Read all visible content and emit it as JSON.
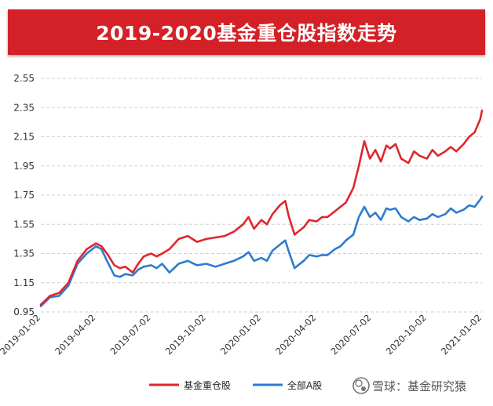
{
  "colors": {
    "banner": "#d42027",
    "fund": "#e0262d",
    "all_a": "#2e7bcf",
    "grid": "#cfcfcf"
  },
  "watermark": {
    "text": "雪球：基金研究猿",
    "icon": "snowball-logo-icon"
  },
  "chart_data": {
    "type": "line",
    "title": "2019-2020基金重仓股指数走势",
    "xlabel": "",
    "ylabel": "",
    "ylim": [
      0.95,
      2.55
    ],
    "yticks": [
      "2.55",
      "2.35",
      "2.15",
      "1.95",
      "1.75",
      "1.55",
      "1.35",
      "1.15",
      "0.95"
    ],
    "ytick_values": [
      2.55,
      2.35,
      2.15,
      1.95,
      1.75,
      1.55,
      1.35,
      1.15,
      0.95
    ],
    "grid": true,
    "legend": "bottom",
    "xticks": [
      "2019-01-02",
      "2019-04-02",
      "2019-07-02",
      "2019-10-02",
      "2020-01-02",
      "2020-04-02",
      "2020-07-02",
      "2020-10-02",
      "2021-01-02"
    ],
    "x_range_index": [
      0,
      24
    ],
    "series": [
      {
        "name": "基金重仓股",
        "color": "#e0262d",
        "x": [
          0,
          0.5,
          1,
          1.5,
          2,
          2.5,
          3,
          3.3,
          3.6,
          4,
          4.3,
          4.6,
          5,
          5.3,
          5.6,
          6,
          6.3,
          6.6,
          7,
          7.5,
          8,
          8.5,
          9,
          9.5,
          10,
          10.5,
          11,
          11.3,
          11.6,
          12,
          12.3,
          12.6,
          13,
          13.3,
          13.5,
          13.8,
          14,
          14.3,
          14.6,
          15,
          15.3,
          15.6,
          16,
          16.3,
          16.6,
          17,
          17.3,
          17.6,
          17.9,
          18.2,
          18.5,
          18.8,
          19,
          19.3,
          19.6,
          20,
          20.3,
          20.6,
          21,
          21.3,
          21.6,
          22,
          22.3,
          22.6,
          23,
          23.3,
          23.6,
          23.9,
          24
        ],
        "values": [
          1.0,
          1.06,
          1.08,
          1.15,
          1.3,
          1.38,
          1.42,
          1.4,
          1.35,
          1.27,
          1.25,
          1.26,
          1.22,
          1.28,
          1.33,
          1.35,
          1.33,
          1.35,
          1.38,
          1.45,
          1.47,
          1.43,
          1.45,
          1.46,
          1.47,
          1.5,
          1.55,
          1.6,
          1.52,
          1.58,
          1.55,
          1.62,
          1.68,
          1.71,
          1.6,
          1.48,
          1.5,
          1.53,
          1.58,
          1.57,
          1.6,
          1.6,
          1.64,
          1.67,
          1.7,
          1.8,
          1.95,
          2.12,
          2.0,
          2.06,
          1.98,
          2.09,
          2.07,
          2.1,
          2.0,
          1.97,
          2.05,
          2.02,
          2.0,
          2.06,
          2.02,
          2.05,
          2.08,
          2.05,
          2.1,
          2.15,
          2.18,
          2.27,
          2.33
        ]
      },
      {
        "name": "全部A股",
        "color": "#2e7bcf",
        "x": [
          0,
          0.5,
          1,
          1.5,
          2,
          2.5,
          3,
          3.3,
          3.6,
          4,
          4.3,
          4.6,
          5,
          5.3,
          5.6,
          6,
          6.3,
          6.6,
          7,
          7.5,
          8,
          8.5,
          9,
          9.5,
          10,
          10.5,
          11,
          11.3,
          11.6,
          12,
          12.3,
          12.6,
          13,
          13.3,
          13.5,
          13.8,
          14,
          14.3,
          14.6,
          15,
          15.3,
          15.6,
          16,
          16.3,
          16.6,
          17,
          17.3,
          17.6,
          17.9,
          18.2,
          18.5,
          18.8,
          19,
          19.3,
          19.6,
          20,
          20.3,
          20.6,
          21,
          21.3,
          21.6,
          22,
          22.3,
          22.6,
          23,
          23.3,
          23.6,
          23.9,
          24
        ],
        "values": [
          0.99,
          1.05,
          1.06,
          1.13,
          1.28,
          1.35,
          1.4,
          1.38,
          1.3,
          1.2,
          1.19,
          1.21,
          1.2,
          1.24,
          1.26,
          1.27,
          1.25,
          1.28,
          1.22,
          1.28,
          1.3,
          1.27,
          1.28,
          1.26,
          1.28,
          1.3,
          1.33,
          1.36,
          1.3,
          1.32,
          1.3,
          1.37,
          1.41,
          1.44,
          1.36,
          1.25,
          1.27,
          1.3,
          1.34,
          1.33,
          1.34,
          1.34,
          1.38,
          1.4,
          1.44,
          1.48,
          1.6,
          1.67,
          1.6,
          1.63,
          1.58,
          1.66,
          1.65,
          1.66,
          1.6,
          1.57,
          1.6,
          1.58,
          1.59,
          1.62,
          1.6,
          1.62,
          1.66,
          1.63,
          1.65,
          1.68,
          1.67,
          1.72,
          1.74
        ]
      }
    ]
  }
}
